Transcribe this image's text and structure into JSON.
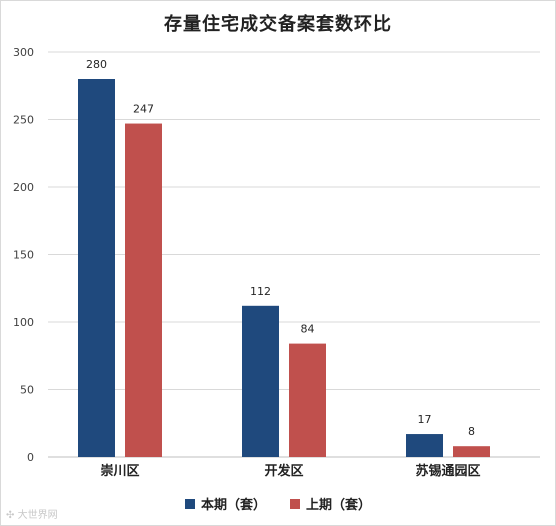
{
  "chart_data": {
    "type": "bar",
    "title": "存量住宅成交备案套数环比",
    "categories": [
      "崇川区",
      "开发区",
      "苏锡通园区"
    ],
    "series": [
      {
        "name": "本期（套）",
        "values": [
          280,
          112,
          17
        ],
        "color": "#1f497d"
      },
      {
        "name": "上期（套）",
        "values": [
          247,
          84,
          8
        ],
        "color": "#c0504d"
      }
    ],
    "ylim": [
      0,
      300
    ],
    "yticks": [
      0,
      50,
      100,
      150,
      200,
      250,
      300
    ],
    "grid": true,
    "legend": "bottom"
  },
  "watermark": "大世界网"
}
